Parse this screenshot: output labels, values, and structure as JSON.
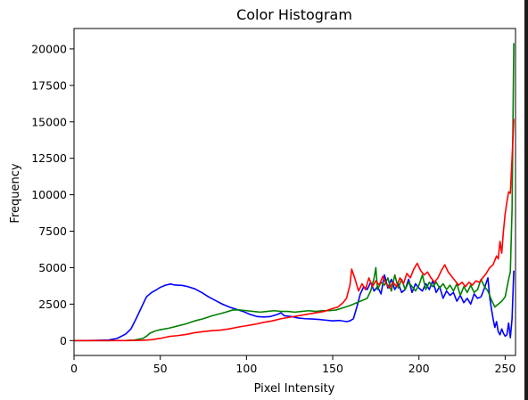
{
  "chart_data": {
    "type": "line",
    "title": "Color Histogram",
    "xlabel": "Pixel Intensity",
    "ylabel": "Frequency",
    "xlim": [
      0,
      256
    ],
    "ylim": [
      -1020,
      21400
    ],
    "xticks": [
      0,
      50,
      100,
      150,
      200,
      250
    ],
    "yticks": [
      0,
      2500,
      5000,
      7500,
      10000,
      12500,
      15000,
      17500,
      20000
    ],
    "grid": false,
    "legend": "none",
    "series": [
      {
        "color": "#0000ff",
        "points": [
          [
            0,
            0
          ],
          [
            10,
            10
          ],
          [
            15,
            20
          ],
          [
            20,
            40
          ],
          [
            25,
            150
          ],
          [
            30,
            450
          ],
          [
            33,
            800
          ],
          [
            36,
            1500
          ],
          [
            38,
            2000
          ],
          [
            40,
            2500
          ],
          [
            42,
            3000
          ],
          [
            45,
            3300
          ],
          [
            48,
            3500
          ],
          [
            50,
            3650
          ],
          [
            53,
            3800
          ],
          [
            56,
            3880
          ],
          [
            58,
            3820
          ],
          [
            60,
            3800
          ],
          [
            63,
            3780
          ],
          [
            66,
            3700
          ],
          [
            70,
            3550
          ],
          [
            74,
            3300
          ],
          [
            78,
            3000
          ],
          [
            82,
            2750
          ],
          [
            86,
            2500
          ],
          [
            90,
            2300
          ],
          [
            94,
            2150
          ],
          [
            98,
            2000
          ],
          [
            102,
            1800
          ],
          [
            106,
            1650
          ],
          [
            110,
            1620
          ],
          [
            114,
            1650
          ],
          [
            118,
            1800
          ],
          [
            120,
            1900
          ],
          [
            122,
            1700
          ],
          [
            126,
            1650
          ],
          [
            130,
            1550
          ],
          [
            134,
            1500
          ],
          [
            138,
            1480
          ],
          [
            142,
            1450
          ],
          [
            146,
            1400
          ],
          [
            150,
            1350
          ],
          [
            154,
            1380
          ],
          [
            158,
            1300
          ],
          [
            160,
            1350
          ],
          [
            162,
            1500
          ],
          [
            164,
            2300
          ],
          [
            166,
            3200
          ],
          [
            168,
            3700
          ],
          [
            170,
            3500
          ],
          [
            172,
            4000
          ],
          [
            174,
            3400
          ],
          [
            176,
            3700
          ],
          [
            178,
            3200
          ],
          [
            180,
            4500
          ],
          [
            182,
            3600
          ],
          [
            184,
            4200
          ],
          [
            186,
            3500
          ],
          [
            188,
            3900
          ],
          [
            190,
            3300
          ],
          [
            192,
            3500
          ],
          [
            194,
            4200
          ],
          [
            196,
            3300
          ],
          [
            198,
            3900
          ],
          [
            200,
            3600
          ],
          [
            202,
            3400
          ],
          [
            204,
            3900
          ],
          [
            206,
            3500
          ],
          [
            208,
            4100
          ],
          [
            210,
            3300
          ],
          [
            212,
            3700
          ],
          [
            214,
            2900
          ],
          [
            216,
            3400
          ],
          [
            218,
            3100
          ],
          [
            220,
            3300
          ],
          [
            222,
            2700
          ],
          [
            224,
            3100
          ],
          [
            226,
            2600
          ],
          [
            228,
            2900
          ],
          [
            230,
            2500
          ],
          [
            232,
            3200
          ],
          [
            234,
            2900
          ],
          [
            236,
            3000
          ],
          [
            238,
            3600
          ],
          [
            240,
            4300
          ],
          [
            241,
            3000
          ],
          [
            242,
            2200
          ],
          [
            243,
            1500
          ],
          [
            244,
            900
          ],
          [
            245,
            1300
          ],
          [
            246,
            600
          ],
          [
            247,
            400
          ],
          [
            248,
            800
          ],
          [
            249,
            500
          ],
          [
            250,
            300
          ],
          [
            251,
            400
          ],
          [
            252,
            1200
          ],
          [
            253,
            200
          ],
          [
            254,
            1500
          ],
          [
            255,
            4800
          ]
        ]
      },
      {
        "color": "#008000",
        "points": [
          [
            0,
            0
          ],
          [
            20,
            0
          ],
          [
            30,
            10
          ],
          [
            35,
            40
          ],
          [
            40,
            150
          ],
          [
            42,
            300
          ],
          [
            44,
            500
          ],
          [
            47,
            650
          ],
          [
            50,
            750
          ],
          [
            55,
            850
          ],
          [
            60,
            1000
          ],
          [
            65,
            1150
          ],
          [
            70,
            1350
          ],
          [
            75,
            1500
          ],
          [
            80,
            1700
          ],
          [
            85,
            1850
          ],
          [
            88,
            1950
          ],
          [
            92,
            2100
          ],
          [
            96,
            2100
          ],
          [
            100,
            2050
          ],
          [
            104,
            2000
          ],
          [
            108,
            1950
          ],
          [
            112,
            2000
          ],
          [
            116,
            2050
          ],
          [
            120,
            2000
          ],
          [
            124,
            2000
          ],
          [
            128,
            1950
          ],
          [
            132,
            2000
          ],
          [
            136,
            2050
          ],
          [
            140,
            2000
          ],
          [
            144,
            2050
          ],
          [
            148,
            2050
          ],
          [
            152,
            2100
          ],
          [
            156,
            2250
          ],
          [
            160,
            2400
          ],
          [
            164,
            2600
          ],
          [
            168,
            2800
          ],
          [
            170,
            2900
          ],
          [
            172,
            3400
          ],
          [
            174,
            4300
          ],
          [
            175,
            5000
          ],
          [
            176,
            3500
          ],
          [
            178,
            4000
          ],
          [
            180,
            3800
          ],
          [
            182,
            4300
          ],
          [
            184,
            3400
          ],
          [
            186,
            4500
          ],
          [
            188,
            3600
          ],
          [
            190,
            4200
          ],
          [
            192,
            3500
          ],
          [
            194,
            4000
          ],
          [
            196,
            3700
          ],
          [
            198,
            3400
          ],
          [
            200,
            3800
          ],
          [
            202,
            4500
          ],
          [
            204,
            3500
          ],
          [
            206,
            4000
          ],
          [
            208,
            3700
          ],
          [
            210,
            4000
          ],
          [
            212,
            3600
          ],
          [
            214,
            3900
          ],
          [
            216,
            3500
          ],
          [
            218,
            3800
          ],
          [
            220,
            3400
          ],
          [
            222,
            3900
          ],
          [
            224,
            3100
          ],
          [
            226,
            3700
          ],
          [
            228,
            3300
          ],
          [
            230,
            3800
          ],
          [
            232,
            3300
          ],
          [
            234,
            3500
          ],
          [
            236,
            4200
          ],
          [
            238,
            3700
          ],
          [
            240,
            3400
          ],
          [
            242,
            2800
          ],
          [
            244,
            2300
          ],
          [
            246,
            2500
          ],
          [
            248,
            2700
          ],
          [
            250,
            3000
          ],
          [
            252,
            4200
          ],
          [
            253,
            4700
          ],
          [
            254,
            9000
          ],
          [
            255,
            20400
          ]
        ]
      },
      {
        "color": "#ff0000",
        "points": [
          [
            0,
            0
          ],
          [
            30,
            0
          ],
          [
            40,
            20
          ],
          [
            45,
            60
          ],
          [
            50,
            150
          ],
          [
            55,
            280
          ],
          [
            60,
            340
          ],
          [
            65,
            420
          ],
          [
            70,
            540
          ],
          [
            75,
            620
          ],
          [
            80,
            680
          ],
          [
            85,
            720
          ],
          [
            90,
            800
          ],
          [
            95,
            920
          ],
          [
            100,
            1020
          ],
          [
            105,
            1120
          ],
          [
            110,
            1250
          ],
          [
            115,
            1350
          ],
          [
            120,
            1500
          ],
          [
            125,
            1600
          ],
          [
            130,
            1700
          ],
          [
            135,
            1800
          ],
          [
            140,
            1900
          ],
          [
            145,
            2000
          ],
          [
            150,
            2200
          ],
          [
            153,
            2300
          ],
          [
            156,
            2600
          ],
          [
            158,
            2900
          ],
          [
            160,
            3800
          ],
          [
            161,
            4900
          ],
          [
            163,
            4200
          ],
          [
            165,
            3400
          ],
          [
            167,
            3900
          ],
          [
            169,
            3500
          ],
          [
            171,
            4300
          ],
          [
            173,
            3700
          ],
          [
            175,
            4100
          ],
          [
            177,
            3800
          ],
          [
            179,
            4400
          ],
          [
            181,
            3900
          ],
          [
            183,
            3600
          ],
          [
            185,
            4000
          ],
          [
            187,
            3700
          ],
          [
            189,
            4300
          ],
          [
            191,
            3900
          ],
          [
            193,
            4600
          ],
          [
            195,
            4300
          ],
          [
            197,
            4900
          ],
          [
            199,
            5300
          ],
          [
            201,
            4800
          ],
          [
            203,
            4500
          ],
          [
            205,
            4700
          ],
          [
            207,
            4300
          ],
          [
            209,
            4000
          ],
          [
            211,
            4300
          ],
          [
            213,
            4800
          ],
          [
            215,
            5200
          ],
          [
            217,
            4700
          ],
          [
            219,
            4400
          ],
          [
            221,
            4100
          ],
          [
            223,
            3800
          ],
          [
            225,
            4000
          ],
          [
            227,
            3700
          ],
          [
            229,
            4000
          ],
          [
            231,
            3800
          ],
          [
            233,
            4100
          ],
          [
            235,
            4000
          ],
          [
            237,
            4300
          ],
          [
            239,
            4600
          ],
          [
            241,
            5000
          ],
          [
            243,
            5200
          ],
          [
            245,
            5800
          ],
          [
            246,
            5600
          ],
          [
            247,
            6800
          ],
          [
            248,
            6000
          ],
          [
            249,
            7500
          ],
          [
            250,
            8700
          ],
          [
            251,
            9500
          ],
          [
            252,
            10200
          ],
          [
            253,
            10100
          ],
          [
            254,
            12500
          ],
          [
            255,
            15200
          ]
        ]
      }
    ]
  }
}
